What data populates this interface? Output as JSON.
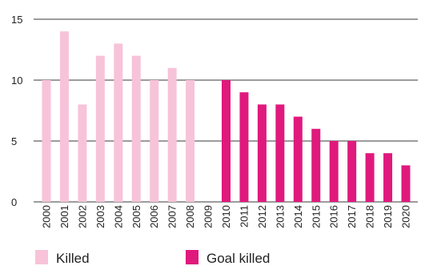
{
  "chart_data": {
    "type": "bar",
    "title": "",
    "xlabel": "",
    "ylabel": "",
    "ylim": [
      0,
      15
    ],
    "yticks": [
      "0",
      "5",
      "10",
      "15"
    ],
    "grid": "horizontal",
    "categories": [
      "2000",
      "2001",
      "2002",
      "2003",
      "2004",
      "2005",
      "2006",
      "2007",
      "2008",
      "2009",
      "2010",
      "2011",
      "2012",
      "2013",
      "2014",
      "2015",
      "2016",
      "2017",
      "2018",
      "2019",
      "2020"
    ],
    "series": [
      {
        "name": "Killed",
        "color": "#f7c3d9",
        "values": [
          10,
          14,
          8,
          12,
          13,
          12,
          10,
          11,
          10,
          null,
          null,
          null,
          null,
          null,
          null,
          null,
          null,
          null,
          null,
          null,
          null
        ]
      },
      {
        "name": "Goal killed",
        "color": "#e0197d",
        "values": [
          null,
          null,
          null,
          null,
          null,
          null,
          null,
          null,
          null,
          null,
          10,
          9,
          8,
          8,
          7,
          6,
          5,
          5,
          4,
          4,
          3
        ]
      }
    ],
    "legend_position": "bottom"
  }
}
